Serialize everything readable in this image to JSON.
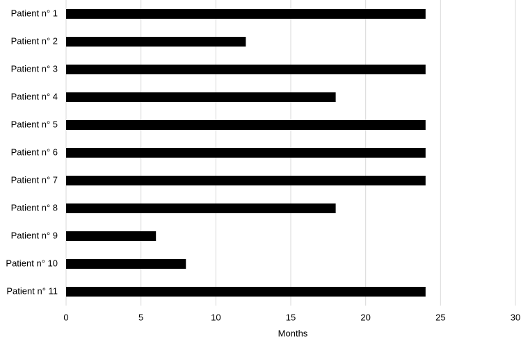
{
  "chart_data": {
    "type": "hbar",
    "x_label": "Months",
    "categories": [
      "Patient n° 1",
      "Patient n° 2",
      "Patient n° 3",
      "Patient n° 4",
      "Patient n° 5",
      "Patient n° 6",
      "Patient n° 7",
      "Patient n° 8",
      "Patient n° 9",
      "Patient n° 10",
      "Patient n° 11"
    ],
    "values": [
      24,
      12,
      24,
      18,
      24,
      24,
      24,
      18,
      6,
      8,
      24
    ],
    "color": "#000000",
    "xlim": [
      0,
      30
    ],
    "xticks": [
      0,
      5,
      10,
      15,
      20,
      25,
      30
    ],
    "grid": true
  }
}
